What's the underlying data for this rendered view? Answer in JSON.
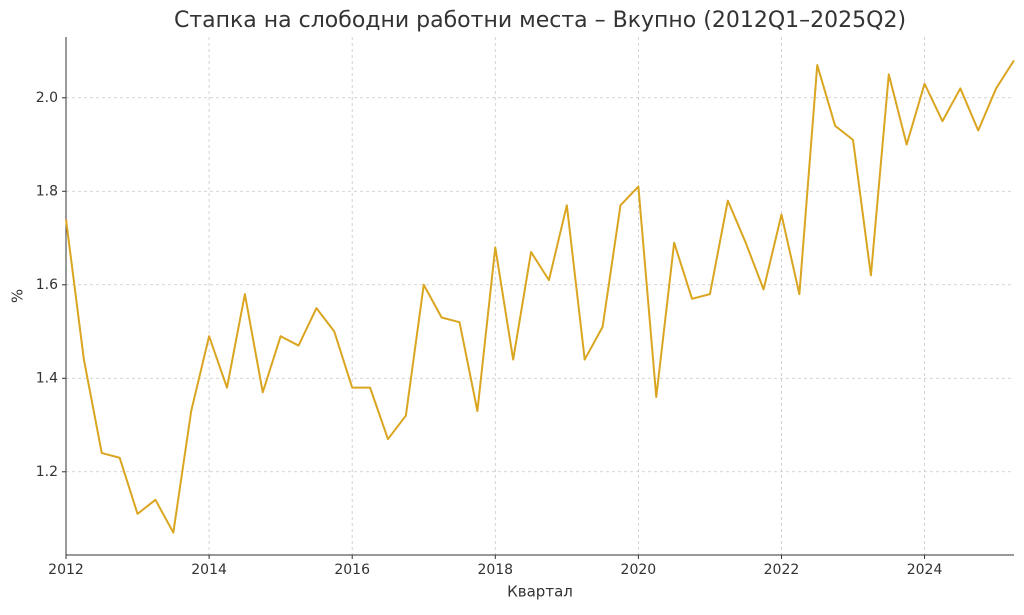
{
  "chart_data": {
    "type": "line",
    "title": "Стапка на слободни работни места – Вкупно (2012Q1–2025Q2)",
    "xlabel": "Квартал",
    "ylabel": "%",
    "x": [
      2012,
      2012.25,
      2012.5,
      2012.75,
      2013,
      2013.25,
      2013.5,
      2013.75,
      2014,
      2014.25,
      2014.5,
      2014.75,
      2015,
      2015.25,
      2015.5,
      2015.75,
      2016,
      2016.25,
      2016.5,
      2016.75,
      2017,
      2017.25,
      2017.5,
      2017.75,
      2018,
      2018.25,
      2018.5,
      2018.75,
      2019,
      2019.25,
      2019.5,
      2019.75,
      2020,
      2020.25,
      2020.5,
      2020.75,
      2021,
      2021.25,
      2021.5,
      2021.75,
      2022,
      2022.25,
      2022.5,
      2022.75,
      2023,
      2023.25,
      2023.5,
      2023.75,
      2024,
      2024.25,
      2024.5,
      2024.75,
      2025,
      2025.25
    ],
    "values": [
      1.74,
      1.44,
      1.24,
      1.23,
      1.11,
      1.14,
      1.07,
      1.33,
      1.49,
      1.38,
      1.58,
      1.37,
      1.49,
      1.47,
      1.55,
      1.5,
      1.38,
      1.38,
      1.27,
      1.32,
      1.6,
      1.53,
      1.52,
      1.33,
      1.68,
      1.44,
      1.67,
      1.61,
      1.77,
      1.44,
      1.51,
      1.77,
      1.81,
      1.36,
      1.69,
      1.57,
      1.58,
      1.78,
      1.69,
      1.59,
      1.75,
      1.58,
      2.07,
      1.94,
      1.91,
      1.62,
      2.05,
      1.9,
      2.03,
      1.95,
      2.02,
      1.93,
      2.02,
      2.08
    ],
    "color": "#daa520",
    "xlim": [
      2012,
      2025.25
    ],
    "xticks": [
      2012,
      2014,
      2016,
      2018,
      2020,
      2022,
      2024
    ],
    "ylim": [
      1.022,
      2.13
    ],
    "yticks": [
      1.2,
      1.4,
      1.6,
      1.8,
      {
        "value": 2,
        "label": "2.0"
      }
    ],
    "grid": true
  }
}
